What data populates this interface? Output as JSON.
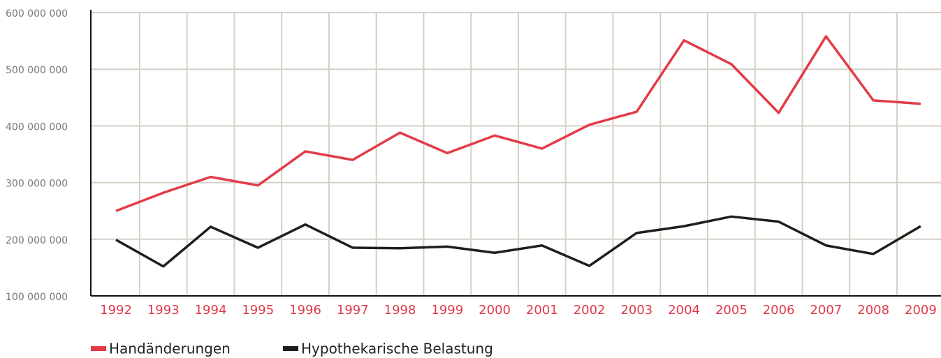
{
  "chart_data": {
    "type": "line",
    "categories": [
      "1992",
      "1993",
      "1994",
      "1995",
      "1996",
      "1997",
      "1998",
      "1999",
      "2000",
      "2001",
      "2002",
      "2003",
      "2004",
      "2005",
      "2006",
      "2007",
      "2008",
      "2009"
    ],
    "series": [
      {
        "name": "Handänderungen",
        "color": "#e23b47",
        "values": [
          250000000,
          282000000,
          310000000,
          295000000,
          355000000,
          340000000,
          388000000,
          352000000,
          383000000,
          360000000,
          402000000,
          425000000,
          551000000,
          509000000,
          423000000,
          558000000,
          445000000,
          439000000
        ]
      },
      {
        "name": "Hypothekarische Belastung",
        "color": "#1e1e1e",
        "values": [
          199000000,
          152000000,
          222000000,
          185000000,
          226000000,
          185000000,
          184000000,
          187000000,
          176000000,
          189000000,
          153000000,
          211000000,
          223000000,
          240000000,
          231000000,
          189000000,
          174000000,
          223000000
        ]
      }
    ],
    "ylim": [
      100000000,
      600000000
    ],
    "yticks": [
      {
        "value": 100000000,
        "label": "100 000 000"
      },
      {
        "value": 200000000,
        "label": "200 000 000"
      },
      {
        "value": 300000000,
        "label": "300 000 000"
      },
      {
        "value": 400000000,
        "label": "400 000 000"
      },
      {
        "value": 500000000,
        "label": "500 000 000"
      },
      {
        "value": 600000000,
        "label": "600 000 000"
      }
    ],
    "grid": true
  }
}
